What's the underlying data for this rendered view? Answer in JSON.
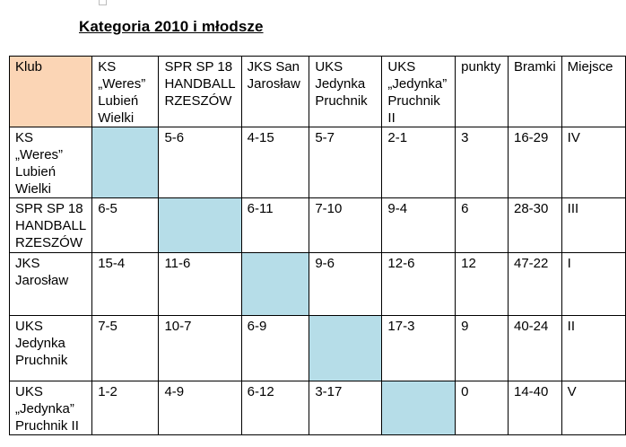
{
  "document": {
    "title": "Kategoria 2010 i młodsze"
  },
  "table": {
    "headers": {
      "club": "Klub",
      "teams": [
        [
          "KS",
          "„Weres”",
          "Lubień",
          "Wielki"
        ],
        [
          "SPR SP 18",
          "HANDBALL",
          "RZESZÓW"
        ],
        [
          "JKS San",
          "Jarosław"
        ],
        [
          "UKS",
          "Jedynka",
          "Pruchnik"
        ],
        [
          "UKS",
          "„Jedynka”",
          "Pruchnik",
          "II"
        ]
      ],
      "points": "punkty",
      "goals": "Bramki",
      "place": "Miejsce"
    },
    "rows": [
      {
        "club": [
          "KS",
          "„Weres”",
          "Lubień",
          "Wielki"
        ],
        "results": [
          "",
          "5-6",
          "4-15",
          "5-7",
          "2-1"
        ],
        "points": "3",
        "goals": "16-29",
        "place": "IV"
      },
      {
        "club": [
          "SPR SP 18",
          "HANDBALL",
          "RZESZÓW"
        ],
        "results": [
          "6-5",
          "",
          "6-11",
          "7-10",
          "9-4"
        ],
        "points": "6",
        "goals": "28-30",
        "place": "III"
      },
      {
        "club": [
          "JKS",
          "Jarosław"
        ],
        "results": [
          "15-4",
          "11-6",
          "",
          "9-6",
          "12-6"
        ],
        "points": "12",
        "goals": "47-22",
        "place": "I"
      },
      {
        "club": [
          "UKS",
          "Jedynka",
          "Pruchnik"
        ],
        "results": [
          "7-5",
          "10-7",
          "6-9",
          "",
          "17-3"
        ],
        "points": "9",
        "goals": "40-24",
        "place": "II"
      },
      {
        "club": [
          "UKS",
          "„Jedynka”",
          "Pruchnik II"
        ],
        "results": [
          "1-2",
          "4-9",
          "6-12",
          "3-17",
          ""
        ],
        "points": "0",
        "goals": "14-40",
        "place": "V"
      }
    ]
  },
  "colors": {
    "header_club_bg": "#fbd5b5",
    "diagonal_bg": "#b6dde8"
  }
}
